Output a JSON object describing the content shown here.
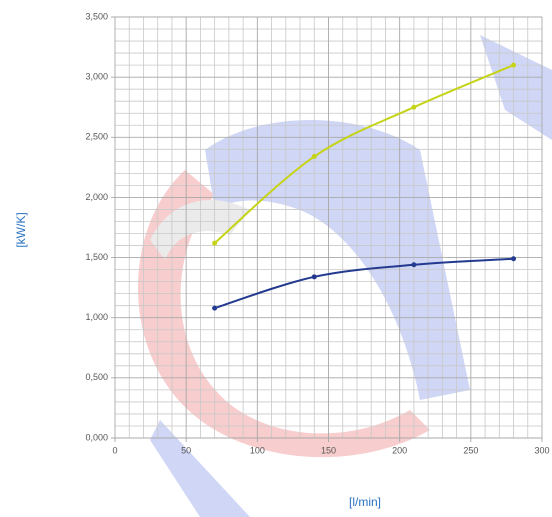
{
  "chart_data": {
    "type": "line",
    "x_label": "[l/min]",
    "y_label": "[kW/K]",
    "x": [
      70,
      140,
      210,
      280
    ],
    "series": [
      {
        "color": "#c5d417",
        "values": [
          1.62,
          2.34,
          2.75,
          3.1
        ]
      },
      {
        "color": "#233a8f",
        "values": [
          1.08,
          1.34,
          1.44,
          1.49
        ]
      }
    ],
    "xlim": [
      0,
      300
    ],
    "xticks": [
      0,
      50,
      100,
      150,
      200,
      250,
      300
    ],
    "ylim": [
      0,
      3.5
    ],
    "yticks": [
      {
        "value": 0,
        "label": "0,000"
      },
      {
        "value": 0.5,
        "label": "0,500"
      },
      {
        "value": 1,
        "label": "1,000"
      },
      {
        "value": 1.5,
        "label": "1,500"
      },
      {
        "value": 2,
        "label": "2,000"
      },
      {
        "value": 2.5,
        "label": "2,500"
      },
      {
        "value": 3,
        "label": "3,000"
      },
      {
        "value": 3.5,
        "label": "3,500"
      }
    ],
    "grid": true
  }
}
